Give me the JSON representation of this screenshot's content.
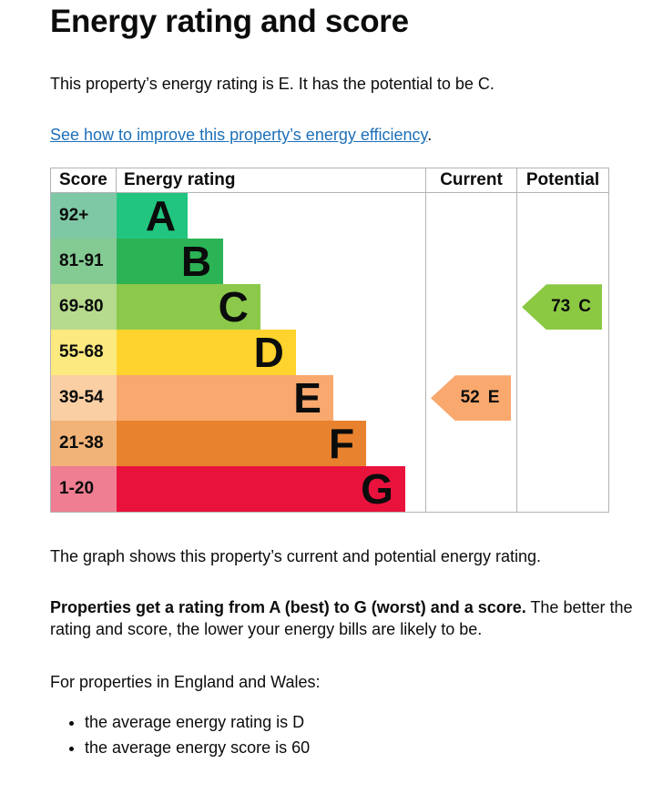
{
  "page": {
    "title": "Energy rating and score",
    "intro": "This property’s energy rating is E. It has the potential to be C.",
    "improve_link_text": "See how to improve this property’s energy efficiency",
    "improve_link_suffix": ".",
    "graph_caption": "The graph shows this property’s current and potential energy rating.",
    "rating_explain_bold": "Properties get a rating from A (best) to G (worst) and a score.",
    "rating_explain_rest": " The better the rating and score, the lower your energy bills are likely to be.",
    "region_heading": "For properties in England and Wales:",
    "bullets": [
      "the average energy rating is D",
      "the average energy score is 60"
    ]
  },
  "chart": {
    "headers": {
      "score": "Score",
      "rating": "Energy rating",
      "current": "Current",
      "potential": "Potential"
    },
    "bands": [
      {
        "score": "92+",
        "letter": "A",
        "color": "#21c57f",
        "tint": "#7ec8a5",
        "width_pct": 19.0
      },
      {
        "score": "81-91",
        "letter": "B",
        "color": "#2bb355",
        "tint": "#84ca93",
        "width_pct": 28.5
      },
      {
        "score": "69-80",
        "letter": "C",
        "color": "#8cc94b",
        "tint": "#b6db8d",
        "width_pct": 38.4
      },
      {
        "score": "55-68",
        "letter": "D",
        "color": "#fed32d",
        "tint": "#fce97f",
        "width_pct": 47.9
      },
      {
        "score": "39-54",
        "letter": "E",
        "color": "#f9a86e",
        "tint": "#fbcfa4",
        "width_pct": 57.9
      },
      {
        "score": "21-38",
        "letter": "F",
        "color": "#e9822f",
        "tint": "#f1b378",
        "width_pct": 66.7
      },
      {
        "score": "1-20",
        "letter": "G",
        "color": "#e9123d",
        "tint": "#ef7e93",
        "width_pct": 77.1
      }
    ],
    "current": {
      "value": "52",
      "letter": "E",
      "color": "#f9a86e",
      "band_index": 4
    },
    "potential": {
      "value": "73",
      "letter": "C",
      "color": "#8cc943",
      "band_index": 2
    }
  },
  "colors": {
    "text": "#0b0c0c",
    "link": "#1d70b8",
    "border": "#b1b4b6"
  },
  "chart_data": {
    "type": "table",
    "title": "Energy rating and score",
    "columns": [
      "Score",
      "Energy rating",
      "Current",
      "Potential"
    ],
    "bands": [
      {
        "score_range": "92+",
        "rating": "A"
      },
      {
        "score_range": "81-91",
        "rating": "B"
      },
      {
        "score_range": "69-80",
        "rating": "C"
      },
      {
        "score_range": "55-68",
        "rating": "D"
      },
      {
        "score_range": "39-54",
        "rating": "E"
      },
      {
        "score_range": "21-38",
        "rating": "F"
      },
      {
        "score_range": "1-20",
        "rating": "G"
      }
    ],
    "current": {
      "score": 52,
      "rating": "E"
    },
    "potential": {
      "score": 73,
      "rating": "C"
    }
  }
}
